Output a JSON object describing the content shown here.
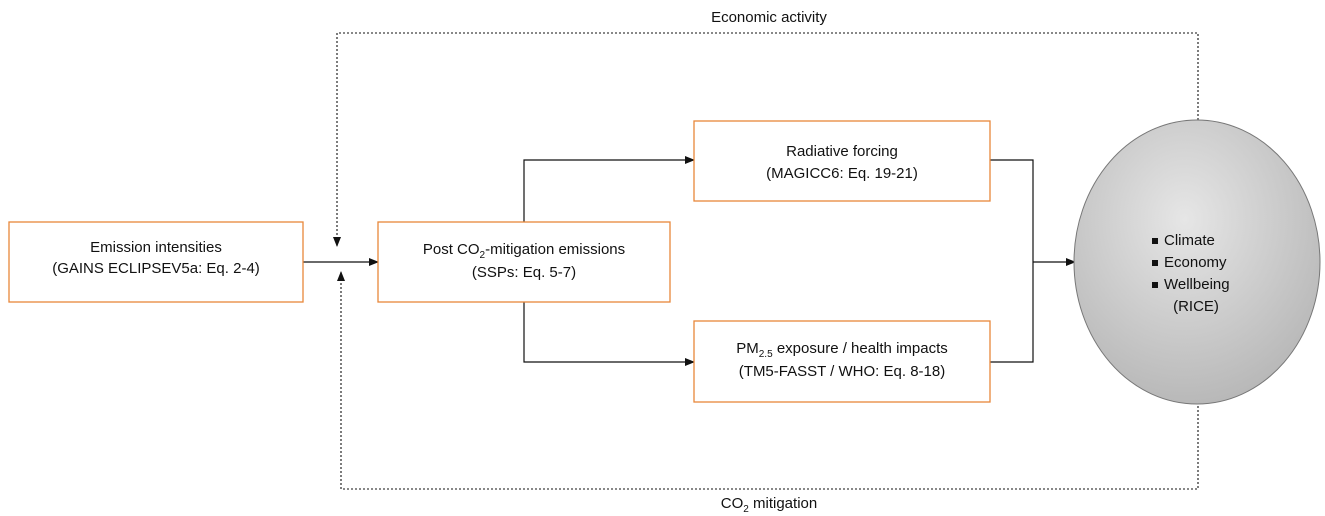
{
  "labels": {
    "top": "Economic activity",
    "bottom": {
      "pre": "CO",
      "sub": "2",
      "post": " mitigation"
    }
  },
  "nodes": [
    {
      "line1": "Emission intensities",
      "line2": "(GAINS ECLIPSEV5a: Eq. 2-4)"
    },
    {
      "line1": {
        "pre": "Post CO",
        "sub": "2",
        "post": "-mitigation emissions"
      },
      "line2": "(SSPs: Eq. 5-7)"
    },
    {
      "line1": "Radiative forcing",
      "line2": "(MAGICC6: Eq. 19-21)"
    },
    {
      "line1": {
        "pre": "PM",
        "sub": "2.5",
        "post": " exposure / health impacts"
      },
      "line2": "(TM5-FASST / WHO: Eq. 8-18)"
    },
    {
      "items": [
        "Climate",
        "Economy",
        "Wellbeing"
      ],
      "note": "(RICE)"
    }
  ]
}
